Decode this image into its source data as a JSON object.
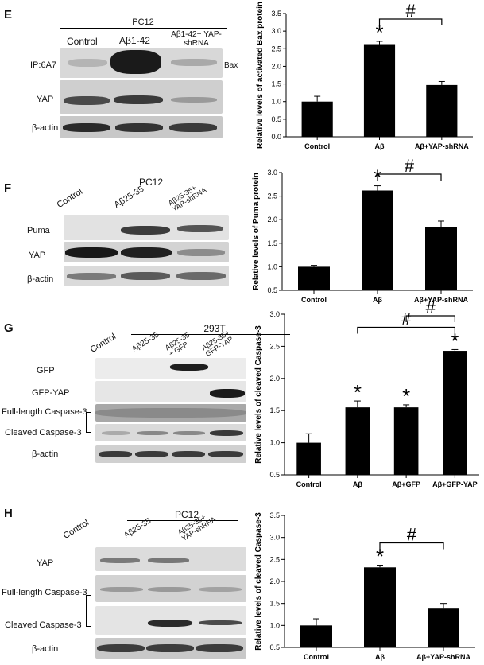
{
  "panels": [
    {
      "label": "E",
      "cell_line": "PC12",
      "columns": [
        "Control",
        "Aβ1-42",
        "Aβ1-42+ YAP-shRNA"
      ],
      "rows": [
        "IP:6A7",
        "YAP",
        "β-actin"
      ],
      "side_label": "Bax",
      "chart_data": {
        "type": "bar",
        "categories": [
          "Control",
          "Aβ",
          "Aβ+YAP-shRNA"
        ],
        "values": [
          1.0,
          2.63,
          1.47
        ],
        "errors": [
          0.15,
          0.08,
          0.1
        ],
        "ylabel": "Relative levels of activated Bax protein",
        "xlabel": "",
        "ylim": [
          0,
          3.5
        ],
        "yticks": [
          "0.0",
          "0.5",
          "1.0",
          "1.5",
          "2.0",
          "2.5",
          "3.0",
          "3.5"
        ],
        "star_on": [
          1
        ],
        "hash_between": [
          [
            1,
            2
          ]
        ],
        "hash_symbol": "#",
        "star_symbol": "*"
      }
    },
    {
      "label": "F",
      "cell_line": "PC12",
      "columns": [
        "Control",
        "Aβ25-35",
        "Aβ25-35+ YAP-shRNA"
      ],
      "rows": [
        "Puma",
        "YAP",
        "β-actin"
      ],
      "side_label": "",
      "chart_data": {
        "type": "bar",
        "categories": [
          "Control",
          "Aβ",
          "Aβ+YAP-shRNA"
        ],
        "values": [
          1.0,
          2.62,
          1.85
        ],
        "errors": [
          0.03,
          0.1,
          0.12
        ],
        "ylabel": "Relative levels of Puma protein",
        "xlabel": "",
        "ylim": [
          0.5,
          3.0
        ],
        "yticks": [
          "0.5",
          "1.0",
          "1.5",
          "2.0",
          "2.5",
          "3.0"
        ],
        "star_on": [
          1
        ],
        "hash_between": [
          [
            1,
            2
          ]
        ],
        "hash_symbol": "#",
        "star_symbol": "*"
      }
    },
    {
      "label": "G",
      "cell_line": "293T",
      "columns": [
        "Control",
        "Aβ25-35",
        "Aβ25-35 + GFP",
        "Aβ25-35+ GFP-YAP"
      ],
      "rows": [
        "GFP",
        "GFP-YAP",
        "Full-length Caspase-3",
        "Cleaved Caspase-3",
        "β-actin"
      ],
      "side_label": "",
      "chart_data": {
        "type": "bar",
        "categories": [
          "Control",
          "Aβ",
          "Aβ+GFP",
          "Aβ+GFP-YAP"
        ],
        "values": [
          1.0,
          1.55,
          1.55,
          2.43
        ],
        "errors": [
          0.14,
          0.1,
          0.04,
          0.02
        ],
        "ylabel": "Relative levels of cleaved Caspase-3",
        "xlabel": "",
        "ylim": [
          0.5,
          3.0
        ],
        "yticks": [
          "0.5",
          "1.0",
          "1.5",
          "2.0",
          "2.5",
          "3.0"
        ],
        "star_on": [
          1,
          2,
          3
        ],
        "hash_between": [
          [
            1,
            3
          ],
          [
            2,
            3
          ]
        ],
        "hash_symbol": "#",
        "star_symbol": "*"
      }
    },
    {
      "label": "H",
      "cell_line": "PC12",
      "columns": [
        "Control",
        "Aβ25-35",
        "Aβ25-35+ YAP-shRNA"
      ],
      "rows": [
        "YAP",
        "Full-length Caspase-3",
        "Cleaved Caspase-3",
        "β-actin"
      ],
      "side_label": "",
      "chart_data": {
        "type": "bar",
        "categories": [
          "Control",
          "Aβ",
          "Aβ+YAP-shRNA"
        ],
        "values": [
          1.0,
          2.32,
          1.4
        ],
        "errors": [
          0.15,
          0.05,
          0.1
        ],
        "ylabel": "Relative levels of cleaved Caspase-3",
        "xlabel": "",
        "ylim": [
          0.5,
          3.5
        ],
        "yticks": [
          "0.5",
          "1.0",
          "1.5",
          "2.0",
          "2.5",
          "3.0",
          "3.5"
        ],
        "star_on": [
          1
        ],
        "hash_between": [
          [
            1,
            2
          ]
        ],
        "hash_symbol": "#",
        "star_symbol": "*"
      }
    }
  ]
}
